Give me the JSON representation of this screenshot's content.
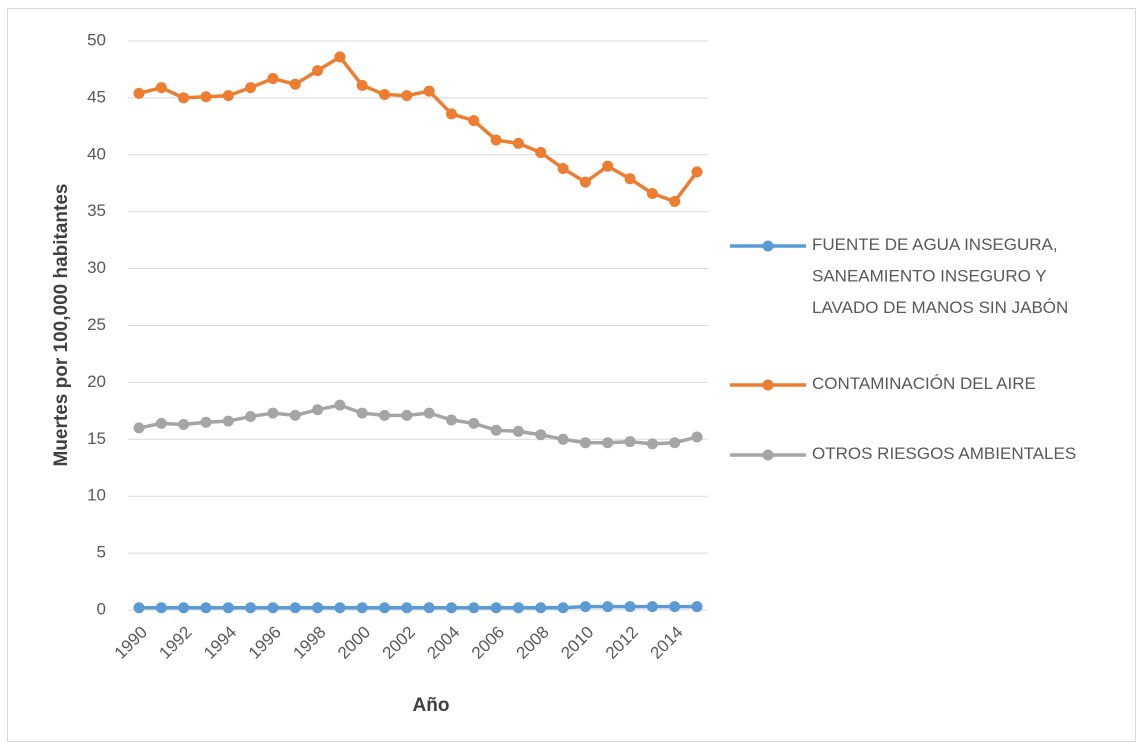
{
  "chart_data": {
    "type": "line",
    "x_label": "Año",
    "y_label": "Muertes por 100,000 habitantes",
    "categories": [
      "1990",
      null,
      "1992",
      null,
      "1994",
      null,
      "1996",
      null,
      "1998",
      null,
      "2000",
      null,
      "2002",
      null,
      "2004",
      null,
      "2006",
      null,
      "2008",
      null,
      "2010",
      null,
      "2012",
      null,
      "2014",
      null
    ],
    "series": [
      {
        "name": "FUENTE DE AGUA INSEGURA, SANEAMIENTO INSEGURO Y LAVADO DE MANOS SIN JABÓN",
        "color": "#5b9bd5",
        "values": [
          0.2,
          0.2,
          0.2,
          0.2,
          0.2,
          0.2,
          0.2,
          0.2,
          0.2,
          0.2,
          0.2,
          0.2,
          0.2,
          0.2,
          0.2,
          0.2,
          0.2,
          0.2,
          0.2,
          0.2,
          0.3,
          0.3,
          0.3,
          0.3,
          0.3,
          0.3
        ]
      },
      {
        "name": "CONTAMINACIÓN DEL AIRE",
        "color": "#ed7d31",
        "values": [
          45.4,
          45.9,
          45.0,
          45.1,
          45.2,
          45.9,
          46.7,
          46.2,
          47.4,
          48.6,
          46.1,
          45.3,
          45.2,
          45.6,
          43.6,
          43.0,
          41.3,
          41.0,
          40.2,
          38.8,
          37.6,
          39.0,
          37.9,
          36.6,
          35.9,
          38.5
        ]
      },
      {
        "name": "OTROS RIESGOS AMBIENTALES",
        "color": "#a5a5a5",
        "values": [
          16.0,
          16.4,
          16.3,
          16.5,
          16.6,
          17.0,
          17.3,
          17.1,
          17.6,
          18.0,
          17.3,
          17.1,
          17.1,
          17.3,
          16.7,
          16.4,
          15.8,
          15.7,
          15.4,
          15.0,
          14.7,
          14.7,
          14.8,
          14.6,
          14.7,
          15.2
        ]
      }
    ],
    "ylim": [
      0,
      50
    ],
    "yticks": [
      0,
      5,
      10,
      15,
      20,
      25,
      30,
      35,
      40,
      45,
      50
    ],
    "grid": true,
    "legend": "right"
  }
}
